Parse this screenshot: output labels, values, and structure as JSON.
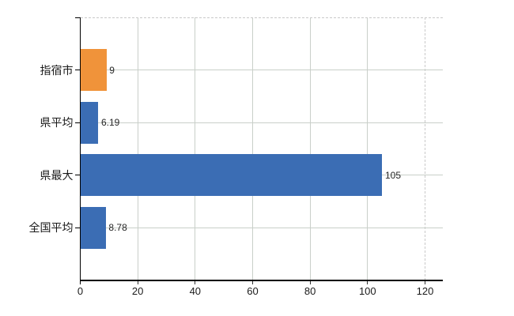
{
  "chart_data": {
    "type": "bar",
    "orientation": "horizontal",
    "title": "",
    "xlabel": "",
    "ylabel": "",
    "categories": [
      "指宿市",
      "県平均",
      "県最大",
      "全国平均"
    ],
    "values": [
      9,
      6.19,
      105,
      8.78
    ],
    "value_labels": [
      "9",
      "6.19",
      "105",
      "8.78"
    ],
    "bar_colors": [
      "#f0933a",
      "#3b6db4",
      "#3b6db4",
      "#3b6db4"
    ],
    "x_ticks": [
      0,
      20,
      40,
      60,
      80,
      100,
      120
    ],
    "x_tick_labels": [
      "0",
      "20",
      "40",
      "60",
      "80",
      "100",
      "120"
    ],
    "xlim": [
      0,
      126.2
    ],
    "grid": true,
    "legend": false,
    "dashed_gridline_at": 120,
    "colors": {
      "axis": "#000000",
      "grid": "#c9cfc9",
      "dashed_border": "#c9c9c9",
      "tick_mark": "#333333",
      "tick_label": "#1a1a1a",
      "category_label": "#1a1a1a",
      "value_label": "#262626",
      "background": "#ffffff"
    }
  }
}
